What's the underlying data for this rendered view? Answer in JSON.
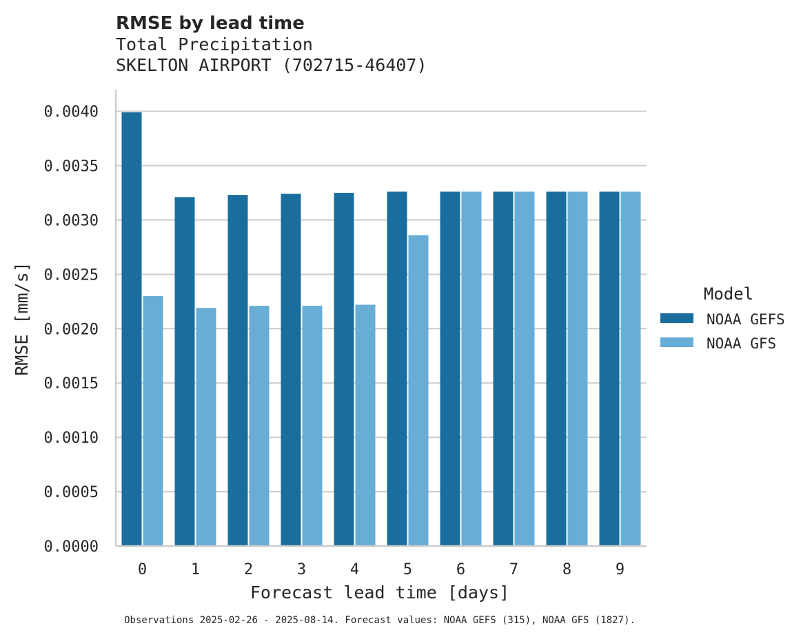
{
  "chart_data": {
    "type": "bar",
    "title": "RMSE by lead time",
    "subtitle_lines": [
      "Total Precipitation",
      "SKELTON AIRPORT (702715-46407)"
    ],
    "xlabel": "Forecast lead time [days]",
    "ylabel": "RMSE [mm/s]",
    "ylim": [
      0,
      0.0042
    ],
    "yticks": [
      "0.0000",
      "0.0005",
      "0.0010",
      "0.0015",
      "0.0020",
      "0.0025",
      "0.0030",
      "0.0035",
      "0.0040"
    ],
    "ytick_values": [
      0,
      0.0005,
      0.001,
      0.0015,
      0.002,
      0.0025,
      0.003,
      0.0035,
      0.004
    ],
    "categories": [
      "0",
      "1",
      "2",
      "3",
      "4",
      "5",
      "6",
      "7",
      "8",
      "9"
    ],
    "series": [
      {
        "name": "NOAA GEFS",
        "color": "#1a6e9e",
        "values": [
          0.00399,
          0.00321,
          0.00323,
          0.00324,
          0.00325,
          0.00326,
          0.00326,
          0.00326,
          0.00326,
          0.00326
        ]
      },
      {
        "name": "NOAA GFS",
        "color": "#67add6",
        "values": [
          0.0023,
          0.00219,
          0.00221,
          0.00221,
          0.00222,
          0.00286,
          0.00326,
          0.00326,
          0.00326,
          0.00326
        ]
      }
    ],
    "legend_title": "Model",
    "legend_position": "right",
    "grid": "y",
    "footnote": "Observations 2025-02-26 - 2025-08-14. Forecast values: NOAA GEFS (315), NOAA GFS (1827)."
  }
}
